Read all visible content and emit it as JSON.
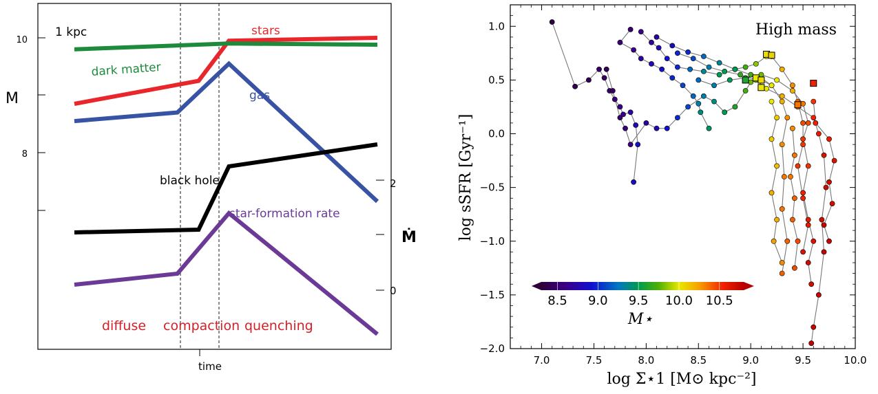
{
  "left_chart": {
    "panel_label": "1 kpc",
    "y_label": "M",
    "y2_label": "Ṁ",
    "x_label": "time",
    "y_ticks": [
      "10",
      "8"
    ],
    "y2_ticks": [
      "2",
      "0"
    ],
    "phases": [
      "diffuse",
      "compaction",
      "quenching"
    ],
    "colors": {
      "stars": "#e8262b",
      "dark_matter": "#1e8a3c",
      "gas": "#3852a4",
      "black_hole": "#000000",
      "sfr": "#6b3a96",
      "phase_text": "#d42027"
    }
  },
  "right_chart": {
    "title": "High mass",
    "xlabel": "log Σ⋆1 [M⊙ kpc⁻²]",
    "ylabel": "log sSFR [Gyr⁻¹]",
    "colorbar_label": "M⋆",
    "x_ticks": [
      "7.0",
      "7.5",
      "8.0",
      "8.5",
      "9.0",
      "9.5",
      "10.0"
    ],
    "y_ticks": [
      "1.0",
      "0.5",
      "0.0",
      "−0.5",
      "−1.0",
      "−1.5",
      "−2.0"
    ],
    "colorbar_ticks": [
      "8.5",
      "9.0",
      "9.5",
      "10.0",
      "10.5"
    ]
  },
  "chart_data": [
    {
      "type": "line",
      "y_label": "M",
      "x_label": "time",
      "annotation": "1 kpc",
      "phases": [
        "diffuse",
        "compaction",
        "quenching"
      ],
      "y_ticks": [
        10,
        8
      ],
      "y2_ticks": [
        2,
        0
      ],
      "series": [
        {
          "name": "stars",
          "x": [
            0,
            0.41,
            0.51,
            1.0
          ],
          "y": [
            8.85,
            9.25,
            9.95,
            10.0
          ]
        },
        {
          "name": "dark matter",
          "x": [
            0,
            0.51,
            1.0
          ],
          "y": [
            9.8,
            9.9,
            9.88
          ]
        },
        {
          "name": "gas",
          "x": [
            0,
            0.34,
            0.51,
            1.0
          ],
          "y": [
            8.55,
            8.7,
            9.55,
            7.15
          ]
        },
        {
          "name": "black hole",
          "x": [
            0,
            0.41,
            0.51,
            1.0
          ],
          "y": [
            1.05,
            1.1,
            2.25,
            2.65
          ]
        },
        {
          "name": "star-formation rate",
          "x": [
            0,
            0.34,
            0.51,
            1.0
          ],
          "y": [
            0.1,
            0.3,
            1.4,
            -0.8
          ]
        }
      ]
    },
    {
      "type": "scatter",
      "title": "High mass",
      "xlabel": "log Σ⋆1 [M⊙ kpc⁻²]",
      "ylabel": "log sSFR [Gyr⁻¹]",
      "xlim": [
        6.7,
        10.0
      ],
      "ylim": [
        -2.0,
        1.2
      ],
      "colorbar": {
        "label": "M⋆",
        "range": [
          8.3,
          10.8
        ],
        "ticks": [
          8.5,
          9.0,
          9.5,
          10.0,
          10.5
        ]
      },
      "tracks": [
        {
          "points": [
            [
              7.1,
              1.04,
              8.35
            ],
            [
              7.32,
              0.44,
              8.38
            ],
            [
              7.45,
              0.5,
              8.4
            ],
            [
              7.55,
              0.6,
              8.45
            ],
            [
              7.6,
              0.52,
              8.45
            ],
            [
              7.65,
              0.4,
              8.5
            ],
            [
              7.7,
              0.32,
              8.55
            ],
            [
              7.75,
              0.25,
              8.6
            ],
            [
              7.78,
              0.18,
              8.65
            ],
            [
              7.85,
              0.2,
              8.7
            ],
            [
              7.9,
              0.08,
              8.8
            ],
            [
              7.92,
              -0.1,
              8.9
            ],
            [
              7.88,
              -0.45,
              8.85
            ]
          ]
        },
        {
          "points": [
            [
              7.85,
              0.97,
              8.5
            ],
            [
              7.75,
              0.85,
              8.55
            ],
            [
              7.88,
              0.78,
              8.6
            ],
            [
              7.95,
              0.7,
              8.7
            ],
            [
              8.05,
              0.65,
              8.8
            ],
            [
              8.15,
              0.6,
              8.9
            ],
            [
              8.25,
              0.52,
              9.0
            ],
            [
              8.35,
              0.45,
              9.1
            ],
            [
              8.45,
              0.35,
              9.2
            ],
            [
              8.5,
              0.28,
              9.3
            ],
            [
              8.52,
              0.2,
              9.4
            ],
            [
              8.6,
              0.05,
              9.45
            ]
          ]
        },
        {
          "points": [
            [
              7.62,
              0.6,
              8.4
            ],
            [
              7.68,
              0.4,
              8.45
            ],
            [
              7.75,
              0.15,
              8.5
            ],
            [
              7.8,
              0.05,
              8.55
            ],
            [
              7.85,
              -0.1,
              8.6
            ],
            [
              8.0,
              0.1,
              8.7
            ],
            [
              8.1,
              0.05,
              8.8
            ],
            [
              8.2,
              0.05,
              8.9
            ],
            [
              8.3,
              0.15,
              9.0
            ],
            [
              8.4,
              0.25,
              9.1
            ],
            [
              8.55,
              0.35,
              9.3
            ],
            [
              8.65,
              0.3,
              9.4
            ],
            [
              8.75,
              0.2,
              9.5
            ],
            [
              8.85,
              0.25,
              9.6
            ],
            [
              8.95,
              0.4,
              9.7
            ],
            [
              9.0,
              0.48,
              9.8
            ],
            [
              9.1,
              0.5,
              9.9
            ],
            [
              9.2,
              0.45,
              10.0
            ]
          ]
        },
        {
          "points": [
            [
              7.95,
              0.95,
              8.6
            ],
            [
              8.05,
              0.85,
              8.7
            ],
            [
              8.12,
              0.8,
              8.8
            ],
            [
              8.2,
              0.7,
              8.9
            ],
            [
              8.3,
              0.62,
              9.0
            ],
            [
              8.42,
              0.6,
              9.2
            ],
            [
              8.55,
              0.58,
              9.35
            ],
            [
              8.7,
              0.55,
              9.5
            ],
            [
              8.85,
              0.6,
              9.6
            ],
            [
              8.95,
              0.62,
              9.7
            ],
            [
              9.05,
              0.65,
              9.85
            ],
            [
              9.15,
              0.72,
              10.0
            ],
            [
              9.2,
              0.72,
              10.1
            ],
            [
              9.3,
              0.6,
              10.2
            ],
            [
              9.4,
              0.45,
              10.3
            ],
            [
              9.45,
              0.3,
              10.4
            ],
            [
              9.5,
              0.1,
              10.45
            ],
            [
              9.5,
              -0.1,
              10.5
            ],
            [
              9.45,
              -0.3,
              10.5
            ],
            [
              9.5,
              -0.6,
              10.55
            ],
            [
              9.55,
              -0.85,
              10.6
            ],
            [
              9.5,
              -1.1,
              10.65
            ]
          ]
        },
        {
          "points": [
            [
              8.1,
              0.9,
              8.7
            ],
            [
              8.25,
              0.82,
              8.85
            ],
            [
              8.4,
              0.76,
              9.0
            ],
            [
              8.55,
              0.72,
              9.2
            ],
            [
              8.7,
              0.66,
              9.35
            ],
            [
              8.85,
              0.6,
              9.5
            ],
            [
              9.0,
              0.55,
              9.7
            ],
            [
              9.1,
              0.52,
              9.85
            ],
            [
              9.2,
              0.45,
              10.0
            ],
            [
              9.3,
              0.3,
              10.2
            ],
            [
              9.35,
              0.15,
              10.3
            ],
            [
              9.3,
              -0.1,
              10.3
            ],
            [
              9.32,
              -0.4,
              10.35
            ],
            [
              9.3,
              -0.7,
              10.35
            ],
            [
              9.35,
              -1.0,
              10.4
            ],
            [
              9.3,
              -1.3,
              10.4
            ]
          ]
        },
        {
          "points": [
            [
              8.3,
              0.75,
              9.0
            ],
            [
              8.45,
              0.7,
              9.1
            ],
            [
              8.6,
              0.62,
              9.3
            ],
            [
              8.75,
              0.58,
              9.5
            ],
            [
              8.9,
              0.55,
              9.65
            ],
            [
              9.05,
              0.5,
              9.8
            ],
            [
              9.15,
              0.42,
              10.0
            ],
            [
              9.3,
              0.35,
              10.2
            ],
            [
              9.45,
              0.25,
              10.4
            ],
            [
              9.6,
              0.15,
              10.55
            ],
            [
              9.65,
              0.0,
              10.6
            ],
            [
              9.7,
              -0.2,
              10.65
            ],
            [
              9.72,
              -0.5,
              10.7
            ],
            [
              9.68,
              -0.8,
              10.7
            ],
            [
              9.7,
              -1.1,
              10.75
            ],
            [
              9.65,
              -1.5,
              10.75
            ],
            [
              9.6,
              -1.8,
              10.75
            ],
            [
              9.58,
              -1.95,
              10.78
            ]
          ]
        },
        {
          "points": [
            [
              8.5,
              0.5,
              9.2
            ],
            [
              8.65,
              0.45,
              9.3
            ],
            [
              8.8,
              0.5,
              9.5
            ],
            [
              8.95,
              0.52,
              9.65
            ],
            [
              9.1,
              0.55,
              9.8
            ],
            [
              9.25,
              0.5,
              10.0
            ],
            [
              9.4,
              0.4,
              10.2
            ],
            [
              9.5,
              0.28,
              10.35
            ],
            [
              9.55,
              0.1,
              10.45
            ],
            [
              9.5,
              -0.05,
              10.5
            ],
            [
              9.55,
              -0.3,
              10.5
            ],
            [
              9.5,
              -0.55,
              10.55
            ],
            [
              9.55,
              -0.8,
              10.6
            ],
            [
              9.6,
              -1.0,
              10.65
            ],
            [
              9.55,
              -1.2,
              10.7
            ],
            [
              9.58,
              -1.4,
              10.7
            ]
          ]
        },
        {
          "points": [
            [
              9.2,
              0.3,
              10.0
            ],
            [
              9.25,
              0.15,
              10.1
            ],
            [
              9.2,
              -0.05,
              10.1
            ],
            [
              9.25,
              -0.3,
              10.15
            ],
            [
              9.2,
              -0.55,
              10.2
            ],
            [
              9.25,
              -0.8,
              10.2
            ],
            [
              9.22,
              -1.0,
              10.25
            ],
            [
              9.3,
              -1.2,
              10.3
            ]
          ]
        },
        {
          "points": [
            [
              9.6,
              0.3,
              10.5
            ],
            [
              9.62,
              0.1,
              10.55
            ],
            [
              9.75,
              -0.05,
              10.6
            ],
            [
              9.8,
              -0.25,
              10.65
            ],
            [
              9.75,
              -0.45,
              10.7
            ],
            [
              9.78,
              -0.65,
              10.7
            ],
            [
              9.7,
              -0.85,
              10.75
            ],
            [
              9.75,
              -1.0,
              10.75
            ]
          ]
        },
        {
          "points": [
            [
              9.4,
              0.05,
              10.3
            ],
            [
              9.42,
              -0.2,
              10.35
            ],
            [
              9.38,
              -0.4,
              10.35
            ],
            [
              9.42,
              -0.6,
              10.4
            ],
            [
              9.4,
              -0.8,
              10.4
            ],
            [
              9.45,
              -1.0,
              10.45
            ],
            [
              9.42,
              -1.25,
              10.45
            ]
          ]
        }
      ],
      "square_markers": [
        [
          9.15,
          0.74,
          10.05
        ],
        [
          9.2,
          0.73,
          10.08
        ],
        [
          9.05,
          0.52,
          10.0
        ],
        [
          9.1,
          0.5,
          10.05
        ],
        [
          9.1,
          0.43,
          10.0
        ],
        [
          8.95,
          0.5,
          9.6
        ],
        [
          9.6,
          0.47,
          10.55
        ],
        [
          9.45,
          0.27,
          10.35
        ]
      ]
    }
  ]
}
